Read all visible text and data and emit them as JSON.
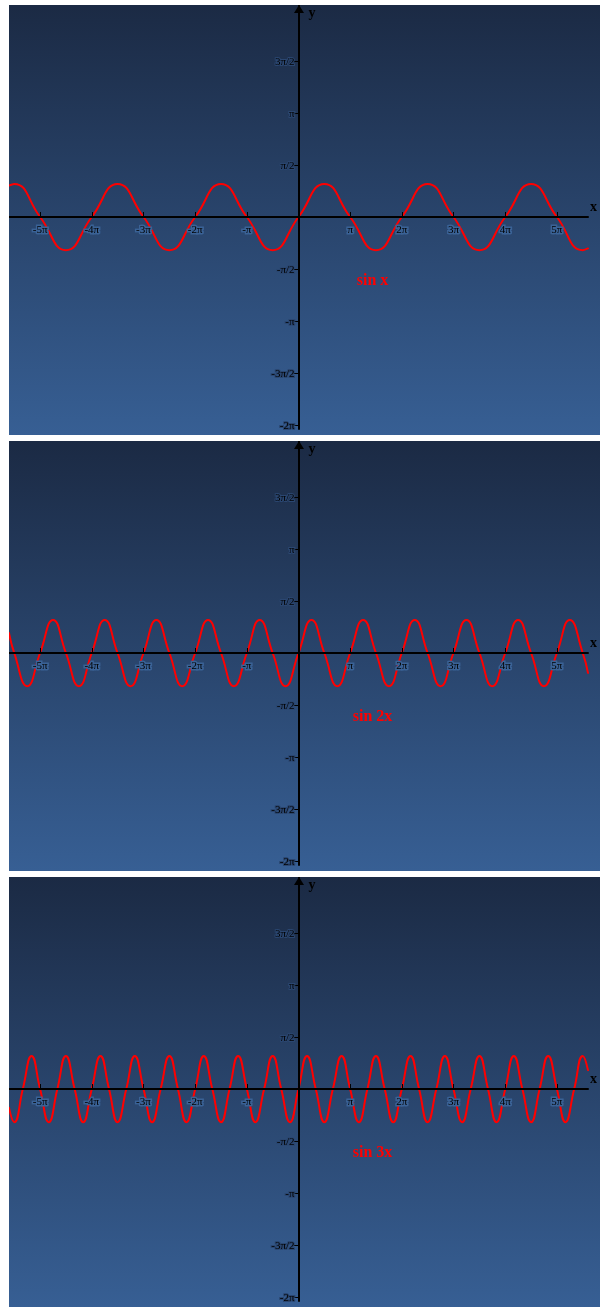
{
  "chart_data": [
    {
      "type": "line",
      "xlabel": "x",
      "ylabel": "y",
      "xlim": [
        -17.6,
        17.6
      ],
      "ylim": [
        -6.4,
        6.4
      ],
      "xticks": [
        {
          "value": -15.708,
          "label": "-5π"
        },
        {
          "value": -12.566,
          "label": "-4π"
        },
        {
          "value": -9.425,
          "label": "-3π"
        },
        {
          "value": -6.283,
          "label": "-2π"
        },
        {
          "value": -3.142,
          "label": "-π"
        },
        {
          "value": 3.142,
          "label": "π"
        },
        {
          "value": 6.283,
          "label": "2π"
        },
        {
          "value": 9.425,
          "label": "3π"
        },
        {
          "value": 12.566,
          "label": "4π"
        },
        {
          "value": 15.708,
          "label": "5π"
        }
      ],
      "yticks": [
        {
          "value": 4.712,
          "label": "3π/2"
        },
        {
          "value": 3.142,
          "label": "π"
        },
        {
          "value": 1.571,
          "label": "π/2"
        },
        {
          "value": -1.571,
          "label": "-π/2"
        },
        {
          "value": -3.142,
          "label": "-π"
        },
        {
          "value": -4.712,
          "label": "-3π/2"
        },
        {
          "value": -6.283,
          "label": "-2π"
        }
      ],
      "grid": false,
      "legend": false,
      "marker": "none",
      "line_style": "solid",
      "series": [
        {
          "name": "sin x",
          "color": "#ff0000",
          "x": [
            -17.6,
            -17.28,
            -15.71,
            -14.14,
            -12.57,
            -11.0,
            -9.42,
            -7.85,
            -6.28,
            -4.71,
            -3.14,
            -1.57,
            0,
            1.57,
            3.14,
            4.71,
            6.28,
            7.85,
            9.42,
            11.0,
            12.57,
            14.14,
            15.71,
            17.28,
            17.6
          ],
          "values": [
            0.95,
            1,
            0,
            -1,
            0,
            1,
            0,
            -1,
            0,
            1,
            0,
            -1,
            0,
            1,
            0,
            -1,
            0,
            1,
            0,
            -1,
            0,
            1,
            0,
            -1,
            -0.95
          ]
        }
      ]
    },
    {
      "type": "line",
      "xlabel": "x",
      "ylabel": "y",
      "xlim": [
        -17.6,
        17.6
      ],
      "ylim": [
        -6.4,
        6.4
      ],
      "xticks": [
        {
          "value": -15.708,
          "label": "-5π"
        },
        {
          "value": -12.566,
          "label": "-4π"
        },
        {
          "value": -9.425,
          "label": "-3π"
        },
        {
          "value": -6.283,
          "label": "-2π"
        },
        {
          "value": -3.142,
          "label": "-π"
        },
        {
          "value": 3.142,
          "label": "π"
        },
        {
          "value": 6.283,
          "label": "2π"
        },
        {
          "value": 9.425,
          "label": "3π"
        },
        {
          "value": 12.566,
          "label": "4π"
        },
        {
          "value": 15.708,
          "label": "5π"
        }
      ],
      "yticks": [
        {
          "value": 4.712,
          "label": "3π/2"
        },
        {
          "value": 3.142,
          "label": "π"
        },
        {
          "value": 1.571,
          "label": "π/2"
        },
        {
          "value": -1.571,
          "label": "-π/2"
        },
        {
          "value": -3.142,
          "label": "-π"
        },
        {
          "value": -4.712,
          "label": "-3π/2"
        },
        {
          "value": -6.283,
          "label": "-2π"
        }
      ],
      "grid": false,
      "legend": false,
      "marker": "none",
      "line_style": "solid",
      "series": [
        {
          "name": "sin 2x",
          "color": "#ff0000",
          "x": [
            -17.6,
            -17.28,
            -16.49,
            -15.71,
            -14.92,
            -14.14,
            -13.35,
            -12.57,
            -11.78,
            -11.0,
            -10.21,
            -9.42,
            -8.64,
            -7.85,
            -7.07,
            -6.28,
            -5.5,
            -4.71,
            -3.93,
            -3.14,
            -2.36,
            -1.57,
            -0.79,
            0,
            0.79,
            1.57,
            2.36,
            3.14,
            3.93,
            4.71,
            5.5,
            6.28,
            7.07,
            7.85,
            8.64,
            9.42,
            10.21,
            11.0,
            11.78,
            12.57,
            13.35,
            14.14,
            14.92,
            15.71,
            16.49,
            17.28,
            17.6
          ],
          "values": [
            0.6,
            0,
            -1,
            0,
            1,
            0,
            -1,
            0,
            1,
            0,
            -1,
            0,
            1,
            0,
            -1,
            0,
            1,
            0,
            -1,
            0,
            1,
            0,
            -1,
            0,
            1,
            0,
            -1,
            0,
            1,
            0,
            -1,
            0,
            1,
            0,
            -1,
            0,
            1,
            0,
            -1,
            0,
            1,
            0,
            -1,
            0,
            1,
            0,
            -0.6
          ]
        }
      ]
    },
    {
      "type": "line",
      "xlabel": "x",
      "ylabel": "y",
      "xlim": [
        -17.6,
        17.6
      ],
      "ylim": [
        -6.4,
        6.4
      ],
      "xticks": [
        {
          "value": -15.708,
          "label": "-5π"
        },
        {
          "value": -12.566,
          "label": "-4π"
        },
        {
          "value": -9.425,
          "label": "-3π"
        },
        {
          "value": -6.283,
          "label": "-2π"
        },
        {
          "value": -3.142,
          "label": "-π"
        },
        {
          "value": 3.142,
          "label": "π"
        },
        {
          "value": 6.283,
          "label": "2π"
        },
        {
          "value": 9.425,
          "label": "3π"
        },
        {
          "value": 12.566,
          "label": "4π"
        },
        {
          "value": 15.708,
          "label": "5π"
        }
      ],
      "yticks": [
        {
          "value": 4.712,
          "label": "3π/2"
        },
        {
          "value": 3.142,
          "label": "π"
        },
        {
          "value": 1.571,
          "label": "π/2"
        },
        {
          "value": -1.571,
          "label": "-π/2"
        },
        {
          "value": -3.142,
          "label": "-π"
        },
        {
          "value": -4.712,
          "label": "-3π/2"
        },
        {
          "value": -6.283,
          "label": "-2π"
        }
      ],
      "grid": false,
      "legend": false,
      "marker": "none",
      "line_style": "solid",
      "series": [
        {
          "name": "sin 3x",
          "color": "#ff0000",
          "x": [
            -17.6,
            -17.28,
            -16.76,
            -16.23,
            -15.71,
            -15.18,
            -14.66,
            -14.14,
            -13.61,
            -13.09,
            -12.57,
            -12.04,
            -11.52,
            -11.0,
            -10.47,
            -9.95,
            -9.42,
            -8.9,
            -8.38,
            -7.85,
            -7.33,
            -6.81,
            -6.28,
            -5.76,
            -5.24,
            -4.71,
            -4.19,
            -3.67,
            -3.14,
            -2.62,
            -2.09,
            -1.57,
            -1.05,
            -0.52,
            0,
            0.52,
            1.05,
            1.57,
            2.09,
            2.62,
            3.14,
            3.67,
            4.19,
            4.71,
            5.24,
            5.76,
            6.28,
            6.81,
            7.33,
            7.85,
            8.38,
            8.9,
            9.42,
            9.95,
            10.47,
            11.0,
            11.52,
            12.04,
            12.57,
            13.09,
            13.61,
            14.14,
            14.66,
            15.18,
            15.71,
            16.23,
            16.76,
            17.28,
            17.6
          ],
          "values": [
            -0.57,
            -1,
            0,
            1,
            0,
            -1,
            0,
            1,
            0,
            -1,
            0,
            1,
            0,
            -1,
            0,
            1,
            0,
            -1,
            0,
            1,
            0,
            -1,
            0,
            1,
            0,
            -1,
            0,
            1,
            0,
            -1,
            0,
            1,
            0,
            -1,
            0,
            1,
            0,
            -1,
            0,
            1,
            0,
            -1,
            0,
            1,
            0,
            -1,
            0,
            1,
            0,
            -1,
            0,
            1,
            0,
            -1,
            0,
            1,
            0,
            -1,
            0,
            1,
            0,
            -1,
            0,
            1,
            0,
            -1,
            0,
            1,
            0.57
          ]
        }
      ]
    }
  ]
}
